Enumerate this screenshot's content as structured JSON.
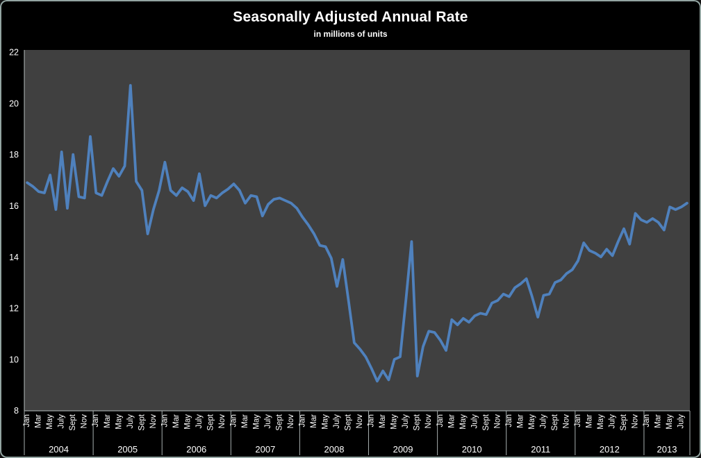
{
  "header": {
    "title": "Seasonally Adjusted Annual Rate",
    "subtitle": "in millions of units"
  },
  "chart_data": {
    "type": "line",
    "title": "Seasonally Adjusted Annual Rate",
    "subtitle": "in millions of units",
    "unit": "millions of units",
    "x_start": "Jan 2004",
    "x_end": "Aug 2013",
    "month_tick_labels": [
      "Jan",
      "Mar",
      "May",
      "July",
      "Sept",
      "Nov"
    ],
    "years": [
      {
        "label": "2004",
        "months": 12
      },
      {
        "label": "2005",
        "months": 12
      },
      {
        "label": "2006",
        "months": 12
      },
      {
        "label": "2007",
        "months": 12
      },
      {
        "label": "2008",
        "months": 12
      },
      {
        "label": "2009",
        "months": 12
      },
      {
        "label": "2010",
        "months": 12
      },
      {
        "label": "2011",
        "months": 12
      },
      {
        "label": "2012",
        "months": 12
      },
      {
        "label": "2013",
        "months": 8
      }
    ],
    "y_ticks": [
      8,
      10,
      12,
      14,
      16,
      18,
      20,
      22
    ],
    "ylim": [
      8,
      22
    ],
    "grid": false,
    "legend": "none",
    "line_color": "#4f81bd",
    "values": [
      16.9,
      16.75,
      16.55,
      16.5,
      17.2,
      15.85,
      18.1,
      15.9,
      18.0,
      16.35,
      16.3,
      18.7,
      16.5,
      16.4,
      16.95,
      17.45,
      17.15,
      17.55,
      20.7,
      16.95,
      16.6,
      14.9,
      15.85,
      16.6,
      17.7,
      16.6,
      16.4,
      16.7,
      16.55,
      16.2,
      17.25,
      16.0,
      16.4,
      16.3,
      16.5,
      16.65,
      16.85,
      16.6,
      16.1,
      16.4,
      16.35,
      15.6,
      16.05,
      16.25,
      16.3,
      16.2,
      16.1,
      15.9,
      15.55,
      15.25,
      14.9,
      14.45,
      14.4,
      13.95,
      12.85,
      13.9,
      12.3,
      10.65,
      10.4,
      10.1,
      9.65,
      9.15,
      9.55,
      9.2,
      10.0,
      10.1,
      12.3,
      14.6,
      9.35,
      10.5,
      11.1,
      11.05,
      10.75,
      10.35,
      11.55,
      11.35,
      11.6,
      11.45,
      11.7,
      11.8,
      11.75,
      12.2,
      12.3,
      12.55,
      12.45,
      12.8,
      12.95,
      13.15,
      12.45,
      11.65,
      12.5,
      12.55,
      13.0,
      13.1,
      13.35,
      13.5,
      13.85,
      14.55,
      14.25,
      14.15,
      14.0,
      14.3,
      14.05,
      14.6,
      15.1,
      14.5,
      15.7,
      15.45,
      15.35,
      15.5,
      15.35,
      15.05,
      15.95,
      15.85,
      15.95,
      16.1
    ]
  },
  "style": {
    "background": "#000000",
    "plot_background": "#404040",
    "line_color": "#4f81bd",
    "text_color": "#ffffff",
    "axis_color": "#b7bfbf",
    "separator_color": "#a8b0b0",
    "border_color": "#93a5a2"
  }
}
